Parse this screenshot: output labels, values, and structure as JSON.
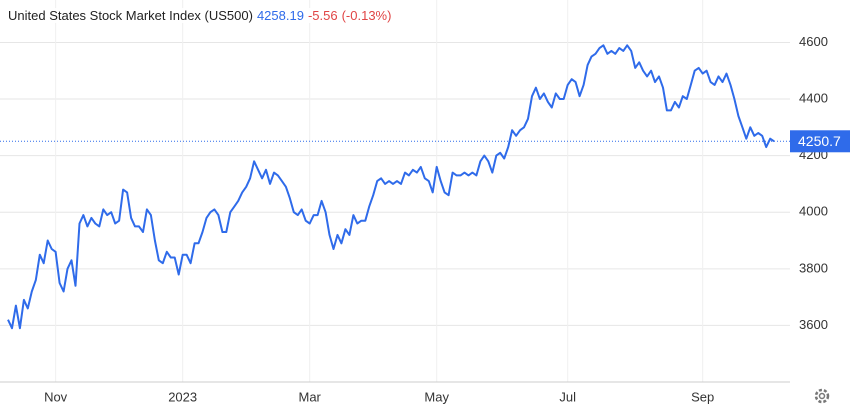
{
  "chart_data": {
    "type": "line",
    "header": {
      "name": "United States Stock Market Index (US500)",
      "price": "4258.19",
      "change": "-5.56",
      "change_pct": "(-0.13%)"
    },
    "current_value": 4250.7,
    "color": "#2f6bea",
    "values": [
      3620,
      3590,
      3670,
      3590,
      3690,
      3660,
      3720,
      3760,
      3850,
      3820,
      3900,
      3870,
      3860,
      3750,
      3720,
      3800,
      3830,
      3740,
      3960,
      3990,
      3950,
      3980,
      3960,
      3950,
      4010,
      3990,
      4000,
      3960,
      3970,
      4080,
      4070,
      3980,
      3950,
      3950,
      3930,
      4010,
      3990,
      3900,
      3830,
      3820,
      3860,
      3840,
      3840,
      3780,
      3850,
      3850,
      3820,
      3890,
      3890,
      3930,
      3980,
      4000,
      4010,
      3990,
      3930,
      3930,
      4000,
      4020,
      4040,
      4070,
      4090,
      4120,
      4180,
      4150,
      4120,
      4150,
      4100,
      4140,
      4130,
      4110,
      4090,
      4050,
      4000,
      3990,
      4010,
      3970,
      3960,
      3990,
      3990,
      4040,
      4000,
      3920,
      3870,
      3920,
      3890,
      3940,
      3920,
      3990,
      3960,
      3970,
      3970,
      4020,
      4060,
      4110,
      4120,
      4100,
      4110,
      4100,
      4110,
      4100,
      4140,
      4130,
      4150,
      4140,
      4160,
      4120,
      4110,
      4070,
      4160,
      4110,
      4070,
      4060,
      4140,
      4130,
      4130,
      4140,
      4130,
      4140,
      4130,
      4180,
      4200,
      4180,
      4140,
      4200,
      4210,
      4190,
      4230,
      4290,
      4270,
      4290,
      4300,
      4330,
      4410,
      4440,
      4400,
      4420,
      4390,
      4370,
      4420,
      4400,
      4400,
      4450,
      4470,
      4460,
      4410,
      4450,
      4520,
      4550,
      4560,
      4580,
      4590,
      4560,
      4570,
      4560,
      4580,
      4570,
      4590,
      4570,
      4510,
      4530,
      4500,
      4480,
      4500,
      4460,
      4480,
      4440,
      4360,
      4360,
      4390,
      4370,
      4410,
      4400,
      4450,
      4500,
      4510,
      4490,
      4500,
      4460,
      4450,
      4480,
      4460,
      4490,
      4450,
      4400,
      4340,
      4300,
      4260,
      4300,
      4270,
      4280,
      4270,
      4230,
      4260,
      4250.7
    ],
    "xlim": [
      0,
      197
    ],
    "xticks": [
      {
        "value": 12,
        "label": "Nov"
      },
      {
        "value": 44,
        "label": "2023"
      },
      {
        "value": 76,
        "label": "Mar"
      },
      {
        "value": 108,
        "label": "May"
      },
      {
        "value": 141,
        "label": "Jul"
      },
      {
        "value": 175,
        "label": "Sep"
      }
    ],
    "ylim": [
      3400,
      4750
    ],
    "yticks": [
      3600,
      3800,
      4000,
      4200,
      4400,
      4600
    ],
    "grid": true
  }
}
